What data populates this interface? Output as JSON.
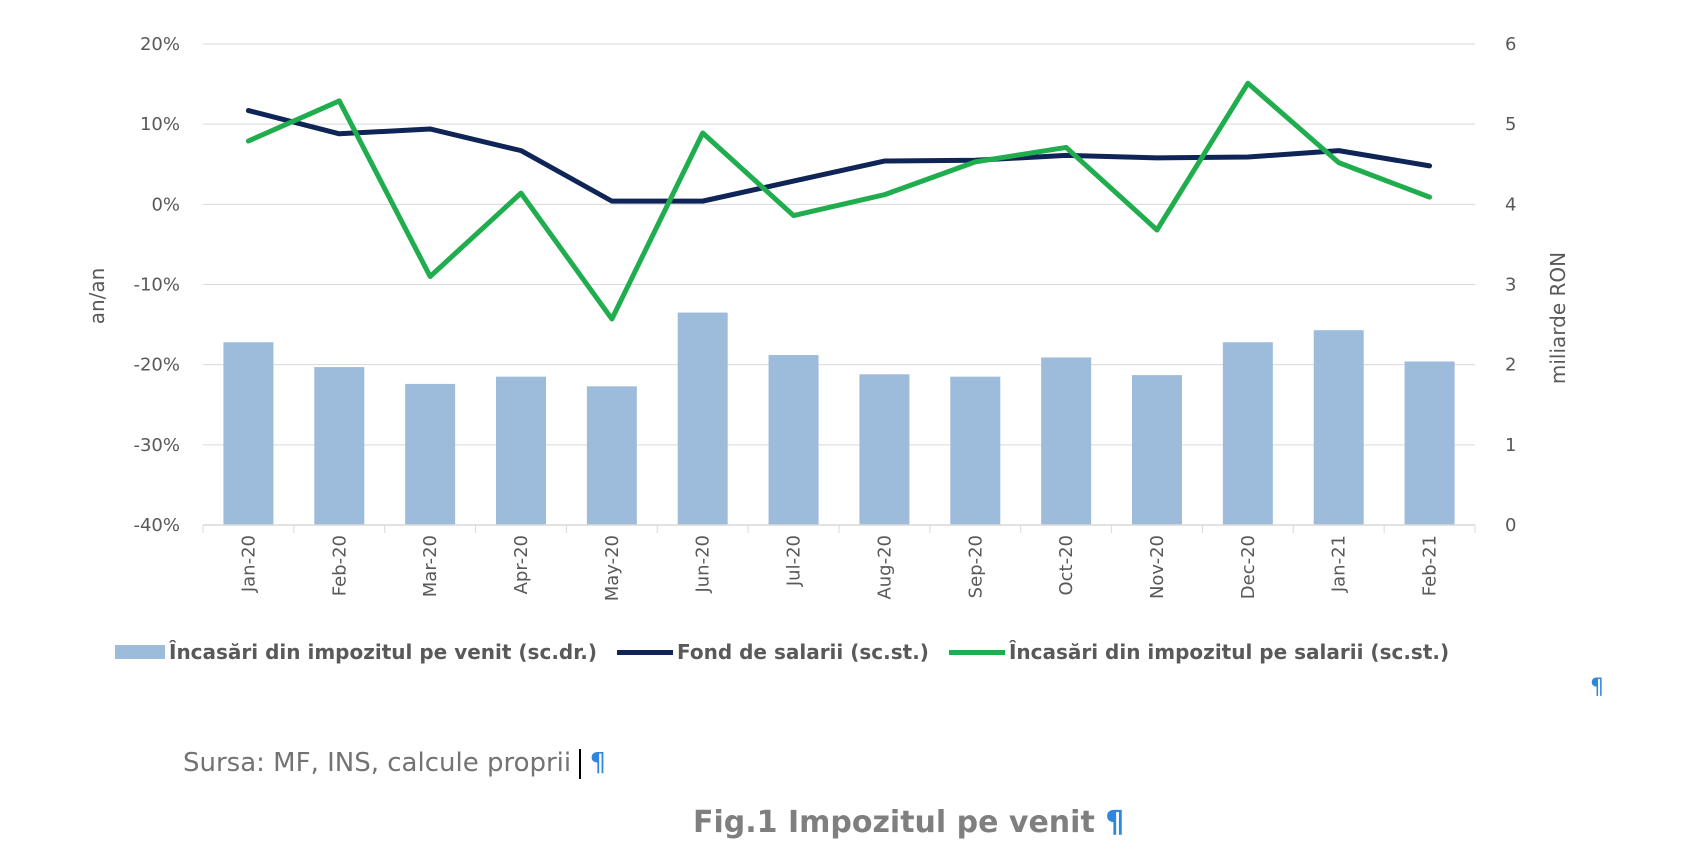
{
  "chart_data": {
    "type": "bar+line",
    "categories": [
      "Jan-20",
      "Feb-20",
      "Mar-20",
      "Apr-20",
      "May-20",
      "Jun-20",
      "Jul-20",
      "Aug-20",
      "Sep-20",
      "Oct-20",
      "Nov-20",
      "Dec-20",
      "Jan-21",
      "Feb-21"
    ],
    "series": [
      {
        "name": "Încasări din impozitul pe venit (sc.dr.)",
        "type": "bar",
        "axis": "right",
        "color": "#9dbcdb",
        "values": [
          2.28,
          1.97,
          1.76,
          1.85,
          1.73,
          2.65,
          2.12,
          1.88,
          1.85,
          2.09,
          1.87,
          2.28,
          2.43,
          2.04
        ]
      },
      {
        "name": "Fond de salarii (sc.st.)",
        "type": "line",
        "axis": "left",
        "color": "#0f2557",
        "values": [
          11.7,
          8.8,
          9.4,
          6.7,
          0.4,
          0.4,
          2.9,
          5.4,
          5.5,
          6.1,
          5.8,
          5.9,
          6.7,
          4.8
        ]
      },
      {
        "name": "Încasări din impozitul pe salarii (sc.st.)",
        "type": "line",
        "axis": "left",
        "color": "#1fad4e",
        "values": [
          7.9,
          12.9,
          -9.0,
          1.4,
          -14.3,
          8.9,
          -1.4,
          1.2,
          5.3,
          7.1,
          -3.2,
          15.1,
          5.2,
          0.9
        ]
      }
    ],
    "y_left": {
      "label": "an/an",
      "min": -40,
      "max": 20,
      "step": 10,
      "ticks": [
        "20%",
        "10%",
        "0%",
        "-10%",
        "-20%",
        "-30%",
        "-40%"
      ]
    },
    "y_right": {
      "label": "miliarde RON",
      "min": 0,
      "max": 6,
      "step": 1,
      "ticks": [
        "6",
        "5",
        "4",
        "3",
        "2",
        "1",
        "0"
      ]
    },
    "grid": true,
    "legend_position": "bottom"
  },
  "legend": {
    "bar_label": "Încasări din impozitul pe venit (sc.dr.)",
    "line1_label": "Fond de salarii (sc.st.)",
    "line2_label": "Încasări din impozitul pe salarii (sc.st.)"
  },
  "source_text": "Sursa: MF, INS, calcule proprii",
  "figure_title": "Fig.1 Impozitul pe venit",
  "colors": {
    "bar": "#9dbcdb",
    "line1": "#0f2557",
    "line2": "#1fad4e",
    "pilcrow": "#2e86de"
  }
}
